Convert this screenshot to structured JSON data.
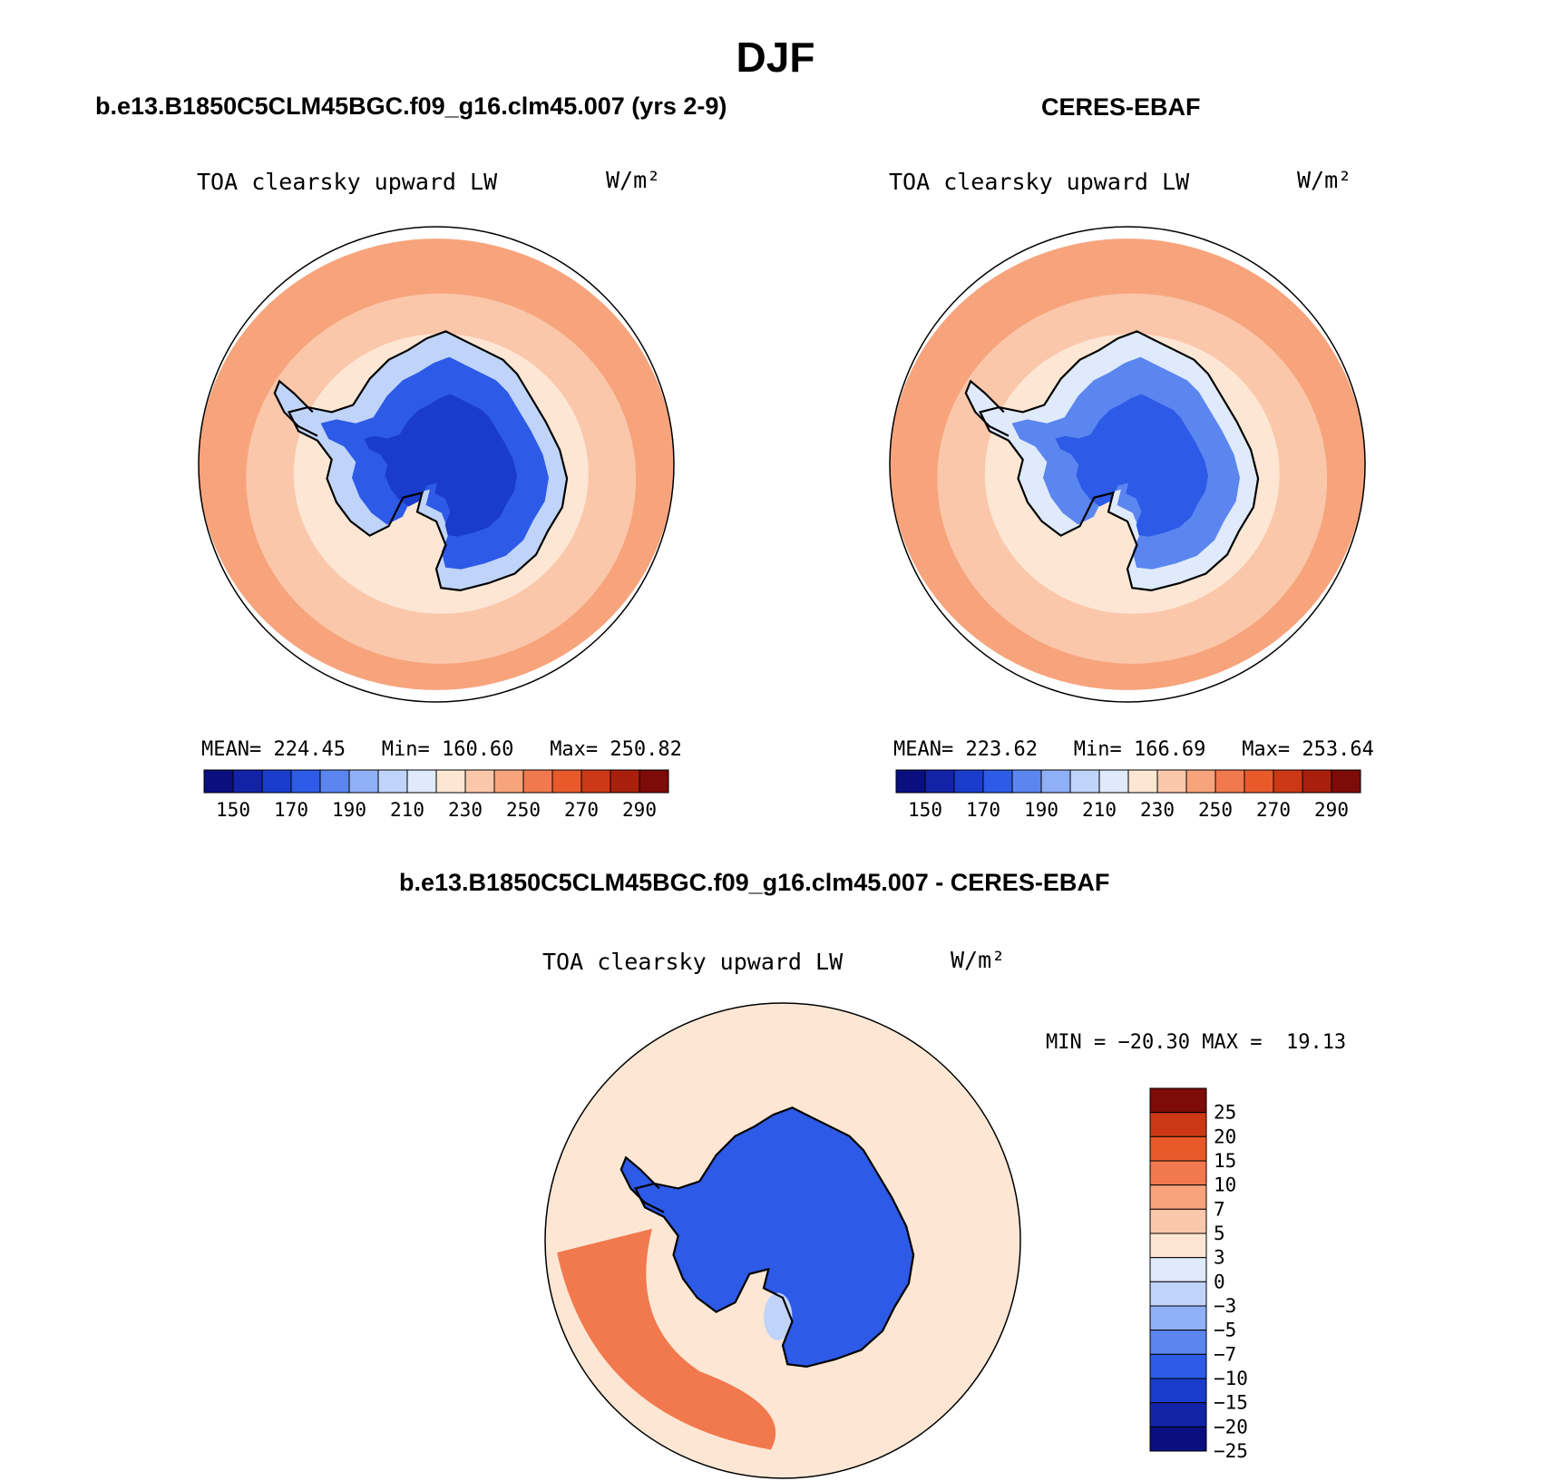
{
  "page": {
    "title": "DJF"
  },
  "colors": {
    "abs_levels_fill": [
      "#0a0f80",
      "#1223a8",
      "#1a3ccc",
      "#2d5ae6",
      "#5b86f0",
      "#8fb0f6",
      "#c0d4fa",
      "#dfeafc",
      "#fde7d4",
      "#fbc7aa",
      "#f7a47d",
      "#f2784e",
      "#e85a2a",
      "#cc3814",
      "#a8200d",
      "#7d0b08"
    ],
    "diff_levels_fill": [
      "#0a0f80",
      "#1223a8",
      "#1a3ccc",
      "#2d5ae6",
      "#5b86f0",
      "#8fb0f6",
      "#c0d4fa",
      "#dfeafc",
      "#fde7d4",
      "#fbc7aa",
      "#f7a47d",
      "#f2784e",
      "#e85a2a",
      "#cc3814",
      "#7d0b08"
    ]
  },
  "chart_data": [
    {
      "type": "heatmap",
      "id": "model",
      "panel_title": "b.e13.B1850C5CLM45BGC.f09_g16.clm45.007 (yrs 2-9)",
      "title": "TOA clearsky upward LW",
      "units": "W/m²",
      "stats": {
        "mean_label": "MEAN=",
        "mean": "224.45",
        "min_label": "Min=",
        "min": "160.60",
        "max_label": "Max=",
        "max": "250.82"
      },
      "colorbar": {
        "tick_labels": [
          "150",
          "170",
          "190",
          "210",
          "230",
          "250",
          "270",
          "290"
        ],
        "level_values": [
          140,
          150,
          160,
          170,
          180,
          190,
          200,
          210,
          220,
          230,
          240,
          250,
          260,
          270,
          280,
          290,
          300
        ]
      },
      "field_summary": {
        "ocean_outer_band": 245,
        "ocean_mid_band": 235,
        "ocean_inner_band": 225,
        "continent_edge": 205,
        "continent_interior": 175,
        "plateau_core": 162
      }
    },
    {
      "type": "heatmap",
      "id": "obs",
      "panel_title": "CERES-EBAF",
      "title": "TOA clearsky upward LW",
      "units": "W/m²",
      "stats": {
        "mean_label": "MEAN=",
        "mean": "223.62",
        "min_label": "Min=",
        "min": "166.69",
        "max_label": "Max=",
        "max": "253.64"
      },
      "colorbar": {
        "tick_labels": [
          "150",
          "170",
          "190",
          "210",
          "230",
          "250",
          "270",
          "290"
        ],
        "level_values": [
          140,
          150,
          160,
          170,
          180,
          190,
          200,
          210,
          220,
          230,
          240,
          250,
          260,
          270,
          280,
          290,
          300
        ]
      },
      "field_summary": {
        "ocean_outer_band": 248,
        "ocean_mid_band": 236,
        "ocean_inner_band": 226,
        "continent_edge": 212,
        "continent_interior": 185,
        "plateau_core": 170
      }
    },
    {
      "type": "heatmap",
      "id": "diff",
      "panel_title": "b.e13.B1850C5CLM45BGC.f09_g16.clm45.007 - CERES-EBAF",
      "title": "TOA clearsky upward LW",
      "units": "W/m²",
      "stats": {
        "min_label": "MIN =",
        "min": "−20.30",
        "max_label": "MAX =",
        "max": "19.13"
      },
      "colorbar": {
        "tick_labels": [
          "25",
          "20",
          "15",
          "10",
          "7",
          "5",
          "3",
          "0",
          "−3",
          "−5",
          "−7",
          "−10",
          "−15",
          "−20",
          "−25"
        ],
        "level_values": [
          -25,
          -20,
          -15,
          -10,
          -7,
          -5,
          -3,
          0,
          3,
          5,
          7,
          10,
          15,
          20,
          25
        ]
      },
      "field_summary": {
        "ocean_background": 1,
        "pacific_sector_positive": 9,
        "continent_interior": -12,
        "ross_sea": -4
      }
    }
  ]
}
